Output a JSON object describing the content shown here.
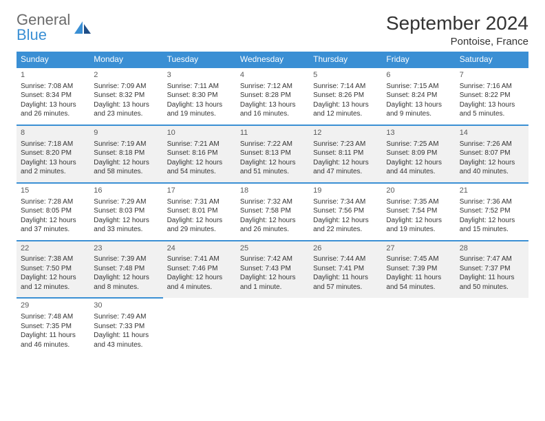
{
  "brand": {
    "line1": "General",
    "line2": "Blue"
  },
  "title": "September 2024",
  "location": "Pontoise, France",
  "accent_color": "#3a8fd4",
  "shaded_bg": "#f1f1f1",
  "daynames": [
    "Sunday",
    "Monday",
    "Tuesday",
    "Wednesday",
    "Thursday",
    "Friday",
    "Saturday"
  ],
  "weeks": [
    {
      "shaded": false,
      "days": [
        {
          "n": "1",
          "sr": "7:08 AM",
          "ss": "8:34 PM",
          "dl": "13 hours and 26 minutes."
        },
        {
          "n": "2",
          "sr": "7:09 AM",
          "ss": "8:32 PM",
          "dl": "13 hours and 23 minutes."
        },
        {
          "n": "3",
          "sr": "7:11 AM",
          "ss": "8:30 PM",
          "dl": "13 hours and 19 minutes."
        },
        {
          "n": "4",
          "sr": "7:12 AM",
          "ss": "8:28 PM",
          "dl": "13 hours and 16 minutes."
        },
        {
          "n": "5",
          "sr": "7:14 AM",
          "ss": "8:26 PM",
          "dl": "13 hours and 12 minutes."
        },
        {
          "n": "6",
          "sr": "7:15 AM",
          "ss": "8:24 PM",
          "dl": "13 hours and 9 minutes."
        },
        {
          "n": "7",
          "sr": "7:16 AM",
          "ss": "8:22 PM",
          "dl": "13 hours and 5 minutes."
        }
      ]
    },
    {
      "shaded": true,
      "days": [
        {
          "n": "8",
          "sr": "7:18 AM",
          "ss": "8:20 PM",
          "dl": "13 hours and 2 minutes."
        },
        {
          "n": "9",
          "sr": "7:19 AM",
          "ss": "8:18 PM",
          "dl": "12 hours and 58 minutes."
        },
        {
          "n": "10",
          "sr": "7:21 AM",
          "ss": "8:16 PM",
          "dl": "12 hours and 54 minutes."
        },
        {
          "n": "11",
          "sr": "7:22 AM",
          "ss": "8:13 PM",
          "dl": "12 hours and 51 minutes."
        },
        {
          "n": "12",
          "sr": "7:23 AM",
          "ss": "8:11 PM",
          "dl": "12 hours and 47 minutes."
        },
        {
          "n": "13",
          "sr": "7:25 AM",
          "ss": "8:09 PM",
          "dl": "12 hours and 44 minutes."
        },
        {
          "n": "14",
          "sr": "7:26 AM",
          "ss": "8:07 PM",
          "dl": "12 hours and 40 minutes."
        }
      ]
    },
    {
      "shaded": false,
      "days": [
        {
          "n": "15",
          "sr": "7:28 AM",
          "ss": "8:05 PM",
          "dl": "12 hours and 37 minutes."
        },
        {
          "n": "16",
          "sr": "7:29 AM",
          "ss": "8:03 PM",
          "dl": "12 hours and 33 minutes."
        },
        {
          "n": "17",
          "sr": "7:31 AM",
          "ss": "8:01 PM",
          "dl": "12 hours and 29 minutes."
        },
        {
          "n": "18",
          "sr": "7:32 AM",
          "ss": "7:58 PM",
          "dl": "12 hours and 26 minutes."
        },
        {
          "n": "19",
          "sr": "7:34 AM",
          "ss": "7:56 PM",
          "dl": "12 hours and 22 minutes."
        },
        {
          "n": "20",
          "sr": "7:35 AM",
          "ss": "7:54 PM",
          "dl": "12 hours and 19 minutes."
        },
        {
          "n": "21",
          "sr": "7:36 AM",
          "ss": "7:52 PM",
          "dl": "12 hours and 15 minutes."
        }
      ]
    },
    {
      "shaded": true,
      "days": [
        {
          "n": "22",
          "sr": "7:38 AM",
          "ss": "7:50 PM",
          "dl": "12 hours and 12 minutes."
        },
        {
          "n": "23",
          "sr": "7:39 AM",
          "ss": "7:48 PM",
          "dl": "12 hours and 8 minutes."
        },
        {
          "n": "24",
          "sr": "7:41 AM",
          "ss": "7:46 PM",
          "dl": "12 hours and 4 minutes."
        },
        {
          "n": "25",
          "sr": "7:42 AM",
          "ss": "7:43 PM",
          "dl": "12 hours and 1 minute."
        },
        {
          "n": "26",
          "sr": "7:44 AM",
          "ss": "7:41 PM",
          "dl": "11 hours and 57 minutes."
        },
        {
          "n": "27",
          "sr": "7:45 AM",
          "ss": "7:39 PM",
          "dl": "11 hours and 54 minutes."
        },
        {
          "n": "28",
          "sr": "7:47 AM",
          "ss": "7:37 PM",
          "dl": "11 hours and 50 minutes."
        }
      ]
    },
    {
      "shaded": false,
      "days": [
        {
          "n": "29",
          "sr": "7:48 AM",
          "ss": "7:35 PM",
          "dl": "11 hours and 46 minutes."
        },
        {
          "n": "30",
          "sr": "7:49 AM",
          "ss": "7:33 PM",
          "dl": "11 hours and 43 minutes."
        },
        null,
        null,
        null,
        null,
        null
      ]
    }
  ],
  "labels": {
    "sunrise": "Sunrise:",
    "sunset": "Sunset:",
    "daylight": "Daylight:"
  }
}
